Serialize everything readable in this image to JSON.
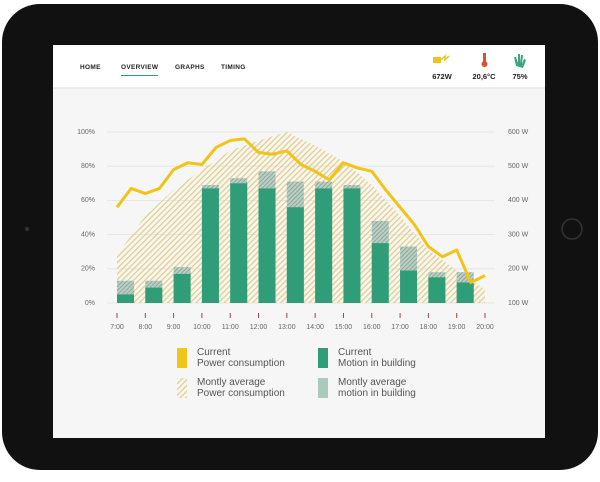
{
  "nav": {
    "items": [
      "HOME",
      "OVERVIEW",
      "GRAPHS",
      "TIMING"
    ],
    "active": 1
  },
  "status": [
    {
      "value": "672W"
    },
    {
      "value": "20,6°C"
    },
    {
      "value": "75%"
    }
  ],
  "chart_data": {
    "type": "combo",
    "xlim": [
      7,
      20
    ],
    "xticks": [
      {
        "value": 7,
        "label": "7:00"
      },
      {
        "value": 8,
        "label": "8:00"
      },
      {
        "value": 9,
        "label": "9:00"
      },
      {
        "value": 10,
        "label": "10:00"
      },
      {
        "value": 11,
        "label": "11:00"
      },
      {
        "value": 12,
        "label": "12:00"
      },
      {
        "value": 13,
        "label": "13:00"
      },
      {
        "value": 14,
        "label": "14:00"
      },
      {
        "value": 15,
        "label": "15:00"
      },
      {
        "value": 16,
        "label": "16:00"
      },
      {
        "value": 17,
        "label": "17:00"
      },
      {
        "value": 18,
        "label": "18:00"
      },
      {
        "value": 19,
        "label": "19:00"
      },
      {
        "value": 20,
        "label": "20:00"
      }
    ],
    "ylim": [
      0,
      100
    ],
    "yticks": [
      {
        "value": 0,
        "label": "0%"
      },
      {
        "value": 20,
        "label": "20%"
      },
      {
        "value": 40,
        "label": "40%"
      },
      {
        "value": 60,
        "label": "60%"
      },
      {
        "value": 80,
        "label": "80%"
      },
      {
        "value": 100,
        "label": "100%"
      }
    ],
    "y2lim": [
      100,
      600
    ],
    "y2ticks": [
      {
        "value": 100,
        "label": "100 W"
      },
      {
        "value": 200,
        "label": "200 W"
      },
      {
        "value": 300,
        "label": "300 W"
      },
      {
        "value": 400,
        "label": "400 W"
      },
      {
        "value": 500,
        "label": "500 W"
      },
      {
        "value": 600,
        "label": "600 W"
      }
    ],
    "grid": true,
    "series": [
      {
        "name": "Montly average\nPower consumption",
        "type": "area",
        "axis": "y2",
        "color": "#e3cf86",
        "x": [
          7,
          8,
          9,
          10,
          11,
          12,
          13,
          14,
          15,
          16,
          17,
          18,
          19,
          20
        ],
        "values": [
          240,
          355,
          430,
          490,
          545,
          575,
          600,
          560,
          515,
          445,
          355,
          255,
          195,
          140
        ]
      },
      {
        "name": "Montly average\nmotion in building",
        "type": "bar",
        "color": "#8fb5a3",
        "x": [
          7,
          8,
          9,
          10,
          11,
          12,
          13,
          14,
          15,
          16,
          17,
          18,
          19
        ],
        "values": [
          13,
          13,
          21,
          69,
          73,
          77,
          71,
          71,
          69,
          48,
          33,
          18,
          18
        ]
      },
      {
        "name": "Current\nMotion in building",
        "type": "bar",
        "color": "#2e9d78",
        "x": [
          7,
          8,
          9,
          10,
          11,
          12,
          13,
          14,
          15,
          16,
          17,
          18,
          19
        ],
        "values": [
          5,
          9,
          17,
          67,
          70,
          67,
          56,
          67,
          67,
          35,
          19,
          15,
          12
        ]
      },
      {
        "name": "Current\nPower consumption",
        "type": "line",
        "axis": "y2",
        "color": "#f0c419",
        "x": [
          7,
          7.5,
          8,
          8.5,
          9,
          9.5,
          10,
          10.5,
          11,
          11.5,
          12,
          12.5,
          13,
          13.5,
          14,
          14.5,
          15,
          15.5,
          16,
          16.5,
          17,
          17.5,
          18,
          18.5,
          19,
          19.5,
          20
        ],
        "values": [
          380,
          435,
          420,
          435,
          490,
          510,
          505,
          555,
          575,
          580,
          540,
          535,
          545,
          505,
          485,
          460,
          510,
          495,
          485,
          430,
          380,
          330,
          265,
          235,
          255,
          160,
          180
        ]
      }
    ]
  }
}
